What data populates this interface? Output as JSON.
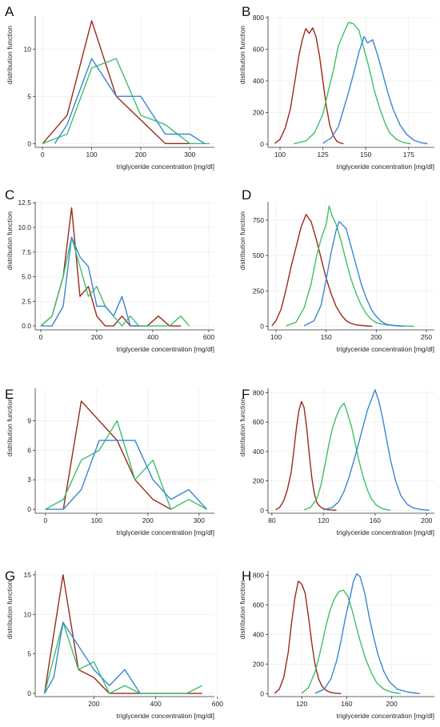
{
  "colors": {
    "series1": "#9b2a1a",
    "series2": "#3fbf6a",
    "series3": "#3a86d6"
  },
  "chart_data": [
    {
      "panel": "A",
      "type": "line",
      "xlabel": "triglyceride concentration [mg/dl]",
      "ylabel": "distribution function",
      "xlim": [
        -15,
        350
      ],
      "ylim": [
        -0.4,
        13.5
      ],
      "xticks": [
        0,
        100,
        200,
        300
      ],
      "yticks": [
        0,
        5,
        10
      ],
      "grid": true,
      "series": [
        {
          "x": [
            0,
            50,
            100,
            150,
            200,
            250,
            300
          ],
          "y": [
            0,
            3,
            13,
            5,
            2.5,
            0,
            0
          ]
        },
        {
          "x": [
            0,
            50,
            100,
            150,
            200,
            250,
            300,
            340
          ],
          "y": [
            0,
            1,
            8,
            9,
            3,
            2,
            0,
            0
          ]
        },
        {
          "x": [
            25,
            50,
            100,
            150,
            200,
            250,
            300,
            330
          ],
          "y": [
            0,
            2,
            9,
            5,
            5,
            1,
            1,
            0
          ]
        }
      ]
    },
    {
      "panel": "B",
      "type": "line",
      "xlabel": "triglyceride concentration [mg/dl]",
      "ylabel": "distribution function",
      "xlim": [
        93,
        190
      ],
      "ylim": [
        -20,
        810
      ],
      "xticks": [
        100,
        125,
        150,
        175
      ],
      "yticks": [
        0,
        200,
        400,
        600,
        800
      ],
      "grid": true,
      "series": [
        {
          "x": [
            97,
            100,
            103,
            106,
            109,
            111,
            113,
            115,
            117,
            119,
            121,
            123,
            125,
            127,
            129,
            131,
            133,
            135,
            137
          ],
          "y": [
            5,
            30,
            100,
            220,
            420,
            560,
            660,
            730,
            700,
            735,
            680,
            560,
            400,
            240,
            120,
            55,
            20,
            8,
            3
          ]
        },
        {
          "x": [
            108,
            115,
            120,
            125,
            128,
            131,
            134,
            137,
            140,
            143,
            146,
            149,
            152,
            155,
            158,
            161,
            164,
            168,
            172,
            176
          ],
          "y": [
            3,
            20,
            70,
            190,
            330,
            460,
            620,
            700,
            770,
            760,
            720,
            600,
            480,
            340,
            230,
            140,
            70,
            30,
            10,
            3
          ]
        },
        {
          "x": [
            125,
            130,
            134,
            137,
            140,
            143,
            146,
            149,
            151,
            154,
            157,
            160,
            163,
            166,
            170,
            174,
            178,
            182,
            186
          ],
          "y": [
            5,
            40,
            110,
            220,
            330,
            450,
            580,
            680,
            640,
            660,
            560,
            440,
            320,
            220,
            120,
            60,
            25,
            10,
            3
          ]
        }
      ]
    },
    {
      "panel": "C",
      "type": "line",
      "xlabel": "triglyceride concentration [mg/dl]",
      "ylabel": "distribution function",
      "xlim": [
        -20,
        620
      ],
      "ylim": [
        -0.4,
        12.6
      ],
      "xticks": [
        0,
        200,
        400,
        600
      ],
      "yticks": [
        0.0,
        2.5,
        5.0,
        7.5,
        10.0,
        12.5
      ],
      "grid": true,
      "series": [
        {
          "x": [
            0,
            40,
            80,
            110,
            140,
            170,
            200,
            230,
            260,
            290,
            320,
            350,
            380,
            420,
            460,
            500
          ],
          "y": [
            0,
            1,
            5,
            12,
            3,
            4,
            1,
            0,
            0,
            1,
            0,
            0,
            0,
            1,
            0,
            0
          ]
        },
        {
          "x": [
            0,
            40,
            80,
            110,
            140,
            170,
            200,
            230,
            260,
            290,
            320,
            350,
            380,
            420,
            460,
            500,
            530
          ],
          "y": [
            0,
            1,
            5,
            9,
            6,
            3,
            4,
            2,
            1,
            0,
            1,
            0,
            0,
            0,
            0,
            1,
            0
          ]
        },
        {
          "x": [
            0,
            40,
            80,
            110,
            140,
            170,
            200,
            230,
            260,
            290,
            320,
            350
          ],
          "y": [
            0,
            0,
            2,
            9,
            7,
            6,
            2,
            2,
            1,
            3,
            0,
            0
          ]
        }
      ]
    },
    {
      "panel": "D",
      "type": "line",
      "xlabel": "triglyceride concentration [mg/dl]",
      "ylabel": "distribution function",
      "xlim": [
        92,
        258
      ],
      "ylim": [
        -25,
        880
      ],
      "xticks": [
        100,
        150,
        200,
        250
      ],
      "yticks": [
        0,
        250,
        500,
        750
      ],
      "grid": true,
      "series": [
        {
          "x": [
            96,
            100,
            105,
            110,
            115,
            120,
            125,
            130,
            135,
            140,
            145,
            150,
            155,
            160,
            165,
            170,
            175,
            180,
            190,
            196
          ],
          "y": [
            5,
            40,
            120,
            260,
            420,
            560,
            700,
            790,
            740,
            620,
            480,
            340,
            230,
            140,
            80,
            40,
            20,
            10,
            3,
            0
          ]
        },
        {
          "x": [
            110,
            120,
            128,
            135,
            140,
            145,
            150,
            153,
            156,
            160,
            165,
            170,
            175,
            180,
            185,
            190,
            195,
            200,
            210,
            225,
            238
          ],
          "y": [
            3,
            30,
            130,
            300,
            480,
            620,
            720,
            850,
            780,
            720,
            600,
            460,
            330,
            230,
            150,
            90,
            50,
            25,
            10,
            3,
            0
          ]
        },
        {
          "x": [
            128,
            138,
            145,
            150,
            155,
            160,
            163,
            166,
            170,
            175,
            180,
            185,
            190,
            195,
            200,
            205,
            210,
            218,
            228
          ],
          "y": [
            3,
            40,
            150,
            330,
            520,
            680,
            740,
            720,
            690,
            560,
            430,
            300,
            200,
            120,
            70,
            35,
            15,
            5,
            0
          ]
        }
      ]
    },
    {
      "panel": "E",
      "type": "line",
      "xlabel": "triglyceride concentration [mg/dl]",
      "ylabel": "distribution function",
      "xlim": [
        -20,
        330
      ],
      "ylim": [
        -0.4,
        12.3
      ],
      "xticks": [
        0,
        100,
        200,
        300
      ],
      "yticks": [
        0,
        3,
        6,
        9
      ],
      "grid": true,
      "series": [
        {
          "x": [
            35,
            70,
            105,
            140,
            175,
            210,
            245
          ],
          "y": [
            0,
            11,
            9,
            7,
            3,
            1,
            0
          ]
        },
        {
          "x": [
            0,
            35,
            70,
            105,
            140,
            175,
            210,
            245,
            280,
            315
          ],
          "y": [
            0,
            1,
            5,
            6,
            9,
            3,
            5,
            0,
            1,
            0
          ]
        },
        {
          "x": [
            0,
            35,
            70,
            105,
            140,
            175,
            210,
            245,
            280,
            315
          ],
          "y": [
            0,
            0,
            2,
            7,
            7,
            7,
            3,
            1,
            2,
            0
          ]
        }
      ]
    },
    {
      "panel": "F",
      "type": "line",
      "xlabel": "triglyceride concentration [mg/dl]",
      "ylabel": "distribution function",
      "xlim": [
        77,
        206
      ],
      "ylim": [
        -20,
        830
      ],
      "xticks": [
        80,
        120,
        160,
        200
      ],
      "yticks": [
        0,
        200,
        400,
        600,
        800
      ],
      "grid": true,
      "series": [
        {
          "x": [
            83,
            86,
            89,
            92,
            95,
            97,
            99,
            101,
            103,
            105,
            107,
            109,
            111,
            113,
            115,
            118,
            121,
            125,
            130
          ],
          "y": [
            3,
            20,
            60,
            140,
            260,
            400,
            560,
            680,
            740,
            700,
            560,
            380,
            220,
            110,
            50,
            20,
            8,
            3,
            0
          ]
        },
        {
          "x": [
            105,
            110,
            115,
            118,
            121,
            124,
            127,
            130,
            133,
            136,
            139,
            142,
            145,
            148,
            151,
            154,
            157,
            161,
            166,
            172
          ],
          "y": [
            3,
            20,
            80,
            170,
            300,
            440,
            560,
            640,
            700,
            730,
            650,
            560,
            440,
            320,
            220,
            140,
            80,
            35,
            10,
            0
          ]
        },
        {
          "x": [
            120,
            127,
            132,
            136,
            140,
            144,
            148,
            151,
            154,
            157,
            160,
            163,
            166,
            169,
            172,
            176,
            180,
            185,
            190,
            196,
            202
          ],
          "y": [
            3,
            20,
            60,
            130,
            230,
            350,
            480,
            580,
            680,
            750,
            820,
            740,
            620,
            480,
            340,
            200,
            100,
            40,
            15,
            5,
            0
          ]
        }
      ]
    },
    {
      "panel": "G",
      "type": "line",
      "xlabel": "triglyceride concentration [mg/dl]",
      "ylabel": "distribution function",
      "xlim": [
        10,
        590
      ],
      "ylim": [
        -0.4,
        15.5
      ],
      "xticks": [
        200,
        400,
        600
      ],
      "yticks": [
        0,
        5,
        10,
        15
      ],
      "grid": true,
      "series": [
        {
          "x": [
            40,
            100,
            150,
            200,
            250,
            300,
            350,
            400,
            450,
            500,
            550
          ],
          "y": [
            0,
            15,
            3,
            2,
            0,
            0,
            0,
            0,
            0,
            0,
            0
          ]
        },
        {
          "x": [
            40,
            100,
            150,
            200,
            250,
            300,
            350,
            400,
            450,
            500,
            550
          ],
          "y": [
            0,
            9,
            3,
            4,
            0,
            1,
            0,
            0,
            0,
            0,
            1
          ]
        },
        {
          "x": [
            40,
            70,
            100,
            150,
            200,
            250,
            300,
            350
          ],
          "y": [
            0,
            2,
            9,
            6,
            3,
            1,
            3,
            0
          ]
        }
      ]
    },
    {
      "panel": "H",
      "type": "line",
      "xlabel": "triglyceride concentration [mg/dl]",
      "ylabel": "distribution function",
      "xlim": [
        90,
        238
      ],
      "ylim": [
        -20,
        830
      ],
      "xticks": [
        120,
        160,
        200
      ],
      "yticks": [
        0,
        200,
        400,
        600,
        800
      ],
      "grid": true,
      "series": [
        {
          "x": [
            96,
            100,
            104,
            108,
            111,
            114,
            117,
            120,
            123,
            126,
            129,
            132,
            135,
            138,
            142,
            146,
            150,
            155
          ],
          "y": [
            3,
            30,
            110,
            280,
            480,
            650,
            760,
            740,
            680,
            520,
            340,
            190,
            100,
            50,
            20,
            8,
            3,
            0
          ]
        },
        {
          "x": [
            120,
            126,
            132,
            137,
            141,
            145,
            149,
            153,
            157,
            161,
            165,
            169,
            173,
            177,
            182,
            187,
            193,
            200,
            208
          ],
          "y": [
            3,
            40,
            150,
            300,
            440,
            560,
            640,
            690,
            700,
            660,
            560,
            440,
            330,
            230,
            140,
            70,
            30,
            10,
            0
          ]
        },
        {
          "x": [
            132,
            140,
            146,
            151,
            155,
            159,
            163,
            166,
            169,
            172,
            176,
            180,
            184,
            188,
            193,
            198,
            205,
            215,
            225
          ],
          "y": [
            3,
            30,
            100,
            220,
            360,
            520,
            650,
            760,
            810,
            790,
            680,
            520,
            380,
            260,
            150,
            80,
            30,
            10,
            0
          ]
        }
      ]
    }
  ]
}
